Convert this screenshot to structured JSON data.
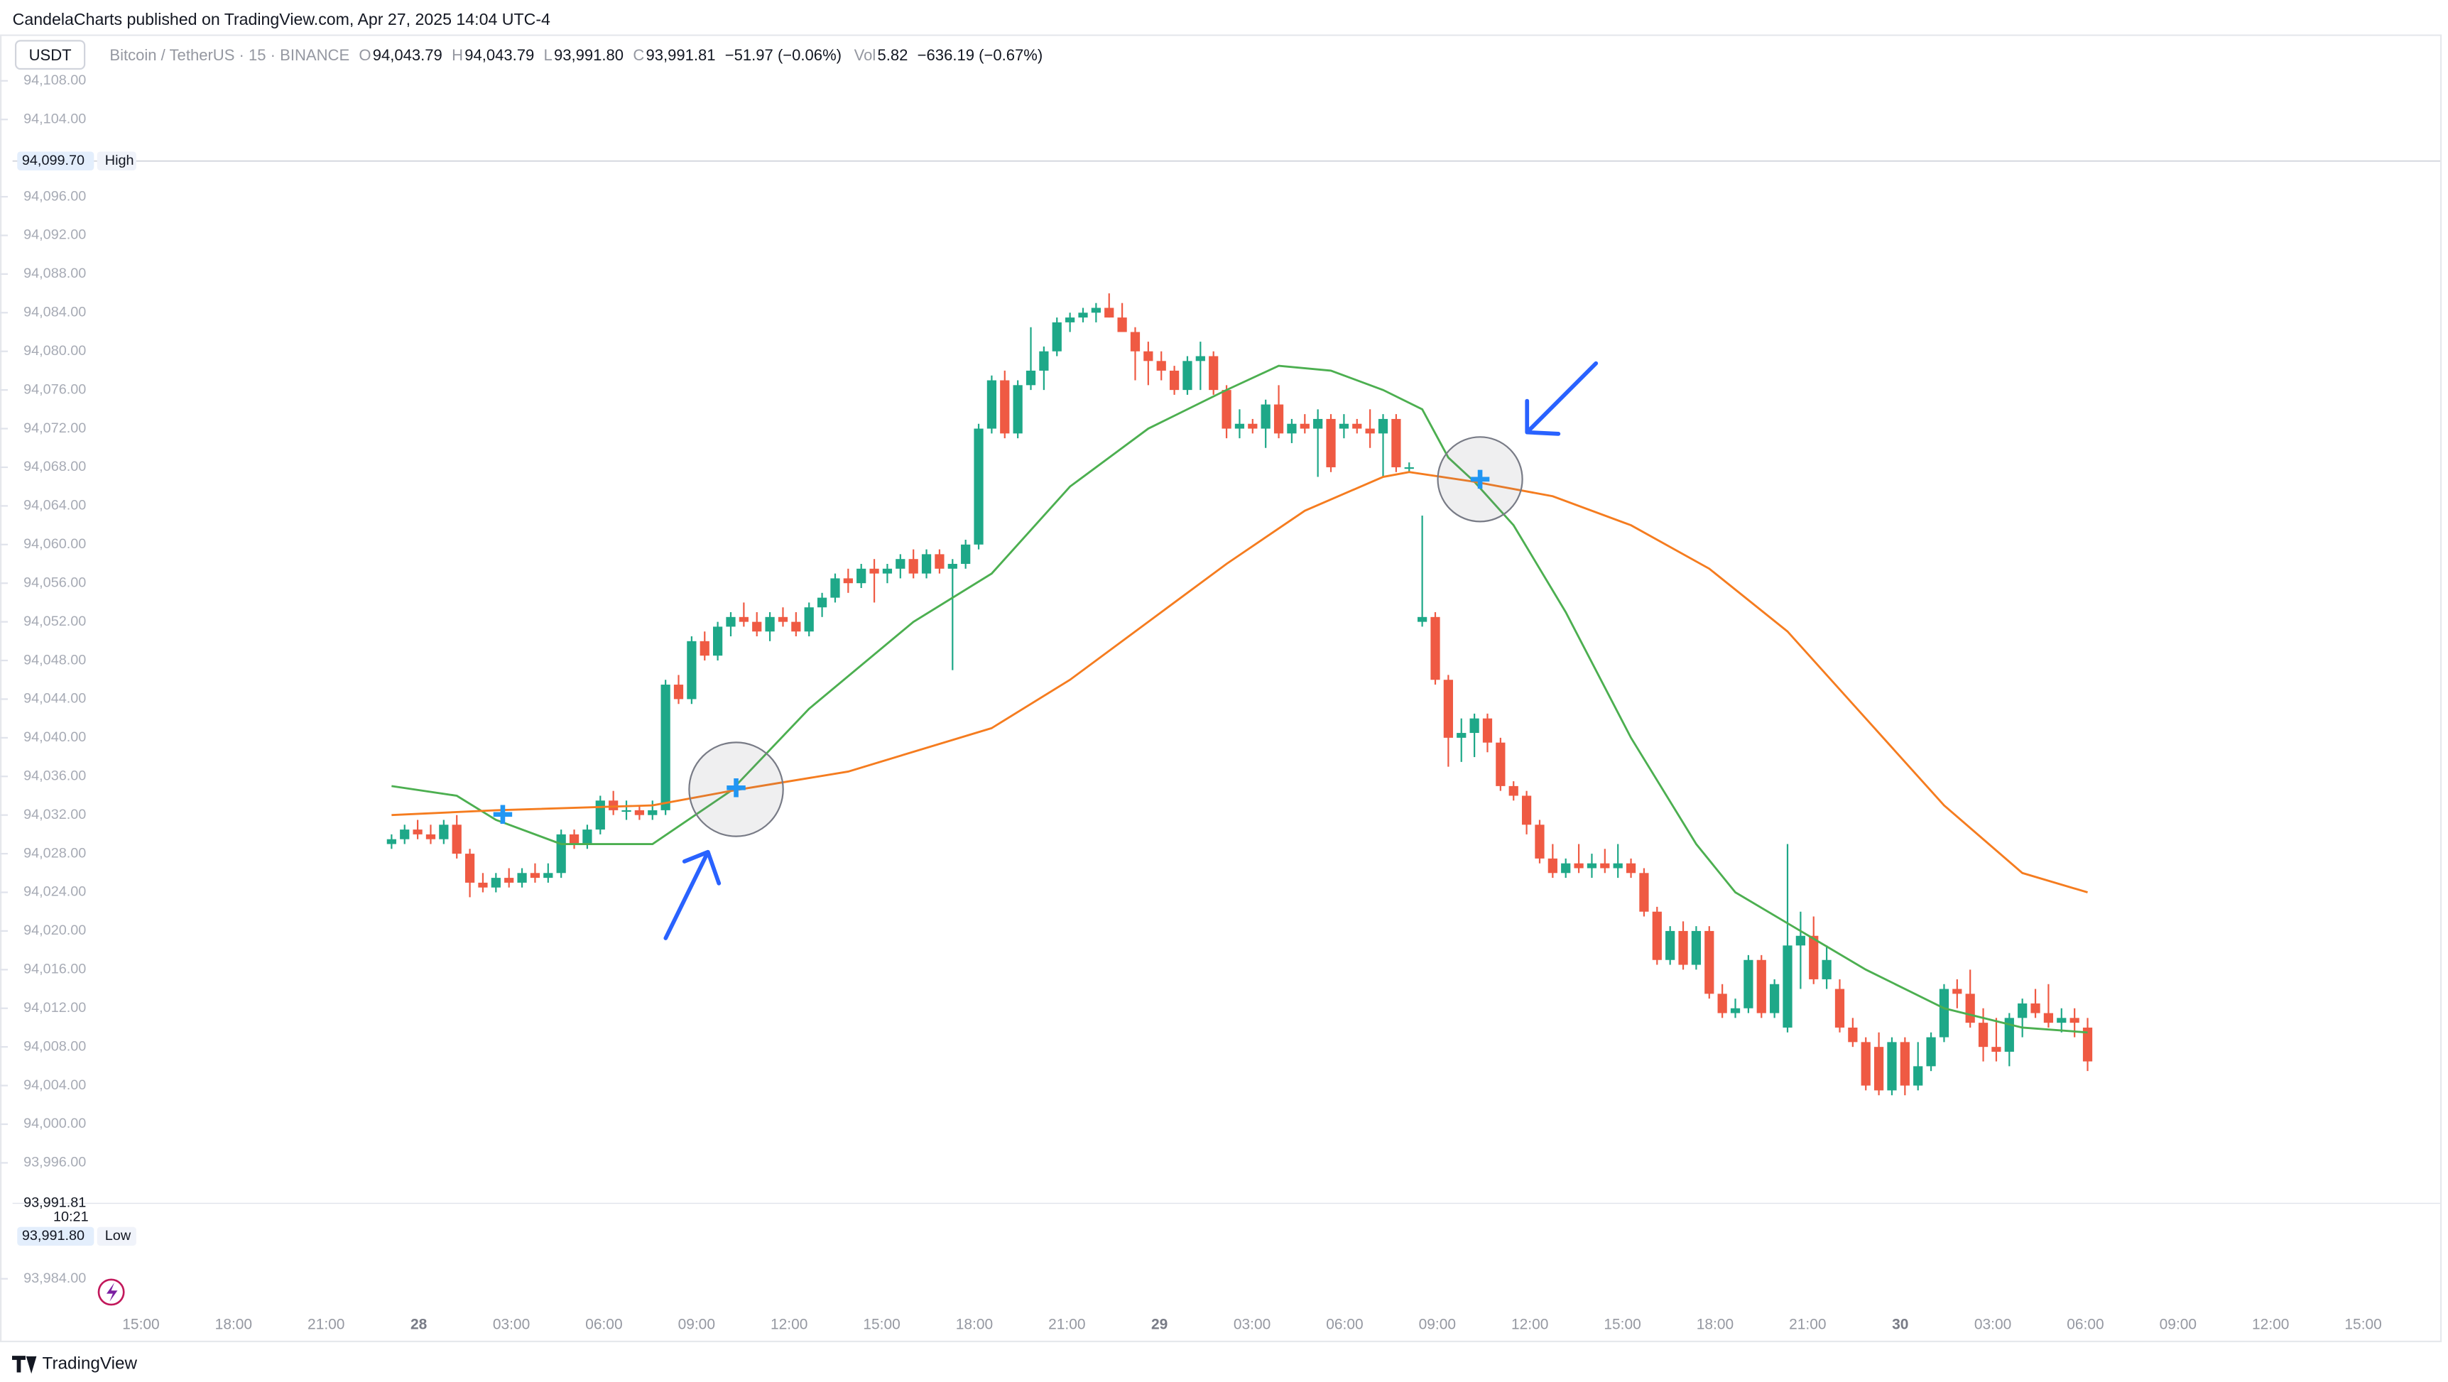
{
  "header": "CandelaCharts published on TradingView.com, Apr 27, 2025 14:04 UTC-4",
  "footer": "TradingView",
  "symbol_button": "USDT",
  "legend": {
    "symbol": "Bitcoin / TetherUS · 15 · BINANCE",
    "o_label": "O",
    "o": "94,043.79",
    "h_label": "H",
    "h": "94,043.79",
    "l_label": "L",
    "l": "93,991.80",
    "c_label": "C",
    "c": "93,991.81",
    "change": "−51.97 (−0.06%)",
    "vol_label": "Vol",
    "vol": "5.82",
    "vol_change": "−636.19 (−0.67%)"
  },
  "price_labels": {
    "high": {
      "value": 94099.7,
      "label": "94,099.70",
      "tag": "High"
    },
    "last": {
      "value": 93991.81,
      "label": "93,991.81",
      "tag": "10:21"
    },
    "low": {
      "value": 93991.8,
      "label": "93,991.80",
      "tag": "Low"
    }
  },
  "chart_data": {
    "type": "candlestick",
    "ylim": [
      93981,
      94112.8
    ],
    "yticks": [
      {
        "value": 94108,
        "label": "94,108.00"
      },
      {
        "value": 94104,
        "label": "94,104.00"
      },
      {
        "value": 94096,
        "label": "94,096.00"
      },
      {
        "value": 94092,
        "label": "94,092.00"
      },
      {
        "value": 94088,
        "label": "94,088.00"
      },
      {
        "value": 94084,
        "label": "94,084.00"
      },
      {
        "value": 94080,
        "label": "94,080.00"
      },
      {
        "value": 94076,
        "label": "94,076.00"
      },
      {
        "value": 94072,
        "label": "94,072.00"
      },
      {
        "value": 94068,
        "label": "94,068.00"
      },
      {
        "value": 94064,
        "label": "94,064.00"
      },
      {
        "value": 94060,
        "label": "94,060.00"
      },
      {
        "value": 94056,
        "label": "94,056.00"
      },
      {
        "value": 94052,
        "label": "94,052.00"
      },
      {
        "value": 94048,
        "label": "94,048.00"
      },
      {
        "value": 94044,
        "label": "94,044.00"
      },
      {
        "value": 94040,
        "label": "94,040.00"
      },
      {
        "value": 94036,
        "label": "94,036.00"
      },
      {
        "value": 94032,
        "label": "94,032.00"
      },
      {
        "value": 94028,
        "label": "94,028.00"
      },
      {
        "value": 94024,
        "label": "94,024.00"
      },
      {
        "value": 94020,
        "label": "94,020.00"
      },
      {
        "value": 94016,
        "label": "94,016.00"
      },
      {
        "value": 94012,
        "label": "94,012.00"
      },
      {
        "value": 94008,
        "label": "94,008.00"
      },
      {
        "value": 94004,
        "label": "94,004.00"
      },
      {
        "value": 94000,
        "label": "94,000.00"
      },
      {
        "value": 93996,
        "label": "93,996.00"
      },
      {
        "value": 93984,
        "label": "93,984.00"
      }
    ],
    "xtick_labels": [
      "15:00",
      "18:00",
      "21:00",
      "28",
      "03:00",
      "06:00",
      "09:00",
      "12:00",
      "15:00",
      "18:00",
      "21:00",
      "29",
      "03:00",
      "06:00",
      "09:00",
      "12:00",
      "15:00",
      "18:00",
      "21:00",
      "30",
      "03:00",
      "06:00",
      "09:00",
      "12:00",
      "15:00"
    ],
    "up_color": "#1ea888",
    "down_color": "#ef5a43",
    "candles": [
      [
        94029,
        94030,
        94028.5,
        94029.5
      ],
      [
        94029.5,
        94031,
        94029,
        94030.5
      ],
      [
        94030.5,
        94031.5,
        94029.5,
        94030
      ],
      [
        94030,
        94031,
        94029,
        94029.5
      ],
      [
        94029.5,
        94031.5,
        94029,
        94031
      ],
      [
        94031,
        94032,
        94027.5,
        94028
      ],
      [
        94028,
        94028.5,
        94023.5,
        94025
      ],
      [
        94025,
        94026,
        94024,
        94024.5
      ],
      [
        94024.5,
        94026,
        94024,
        94025.5
      ],
      [
        94025.5,
        94026.5,
        94024.5,
        94025
      ],
      [
        94025,
        94026.5,
        94024.5,
        94026
      ],
      [
        94026,
        94027,
        94025,
        94025.5
      ],
      [
        94025.5,
        94027,
        94025,
        94026
      ],
      [
        94026,
        94030.5,
        94025.5,
        94030
      ],
      [
        94030,
        94030.5,
        94028.5,
        94029
      ],
      [
        94029,
        94031,
        94028.5,
        94030.5
      ],
      [
        94030.5,
        94034,
        94030,
        94033.5
      ],
      [
        94033.5,
        94034.5,
        94032,
        94032.5
      ],
      [
        94032.5,
        94033.5,
        94031.5,
        94032.5
      ],
      [
        94032.5,
        94033,
        94031.5,
        94032
      ],
      [
        94032,
        94033.5,
        94031.5,
        94032.5
      ],
      [
        94032.5,
        94046,
        94032,
        94045.5
      ],
      [
        94045.5,
        94046.5,
        94043.5,
        94044
      ],
      [
        94044,
        94050.5,
        94043.5,
        94050
      ],
      [
        94050,
        94051,
        94048,
        94048.5
      ],
      [
        94048.5,
        94052,
        94048,
        94051.5
      ],
      [
        94051.5,
        94053,
        94050.5,
        94052.5
      ],
      [
        94052.5,
        94054,
        94051.5,
        94052
      ],
      [
        94052,
        94053,
        94050.5,
        94051
      ],
      [
        94051,
        94053,
        94050,
        94052.5
      ],
      [
        94052.5,
        94053.5,
        94051.5,
        94052
      ],
      [
        94052,
        94053,
        94050.5,
        94051
      ],
      [
        94051,
        94054,
        94050.5,
        94053.5
      ],
      [
        94053.5,
        94055,
        94052.5,
        94054.5
      ],
      [
        94054.5,
        94057,
        94054,
        94056.5
      ],
      [
        94056.5,
        94057.5,
        94055,
        94056
      ],
      [
        94056,
        94058,
        94055.5,
        94057.5
      ],
      [
        94057.5,
        94058.5,
        94054,
        94057
      ],
      [
        94057,
        94058,
        94056,
        94057.5
      ],
      [
        94057.5,
        94059,
        94056.5,
        94058.5
      ],
      [
        94058.5,
        94059.5,
        94056.5,
        94057
      ],
      [
        94057,
        94059.5,
        94056.5,
        94059
      ],
      [
        94059,
        94059.5,
        94057,
        94057.5
      ],
      [
        94057.5,
        94058.5,
        94047,
        94058
      ],
      [
        94058,
        94060.5,
        94057.5,
        94060
      ],
      [
        94060,
        94072.5,
        94059.5,
        94072
      ],
      [
        94072,
        94077.5,
        94071.5,
        94077
      ],
      [
        94077,
        94078,
        94071,
        94071.5
      ],
      [
        94071.5,
        94077,
        94071,
        94076.5
      ],
      [
        94076.5,
        94082.5,
        94076,
        94078
      ],
      [
        94078,
        94080.5,
        94076,
        94080
      ],
      [
        94080,
        94083.5,
        94079.5,
        94083
      ],
      [
        94083,
        94084,
        94082,
        94083.5
      ],
      [
        94083.5,
        94084.5,
        94083,
        94084
      ],
      [
        94084,
        94085,
        94083,
        94084.5
      ],
      [
        94084.5,
        94086,
        94083.5,
        94083.5
      ],
      [
        94083.5,
        94085,
        94082,
        94082
      ],
      [
        94082,
        94082.5,
        94077,
        94080
      ],
      [
        94080,
        94081,
        94076.5,
        94079
      ],
      [
        94079,
        94080,
        94077,
        94078
      ],
      [
        94078,
        94078.5,
        94075.5,
        94076
      ],
      [
        94076,
        94079.5,
        94075.5,
        94079
      ],
      [
        94079,
        94081,
        94076,
        94079.5
      ],
      [
        94079.5,
        94080,
        94075.5,
        94076
      ],
      [
        94076,
        94076.5,
        94071,
        94072
      ],
      [
        94072,
        94074,
        94071,
        94072.5
      ],
      [
        94072.5,
        94073,
        94071.5,
        94072
      ],
      [
        94072,
        94075,
        94070,
        94074.5
      ],
      [
        94074.5,
        94076.5,
        94071,
        94071.5
      ],
      [
        94071.5,
        94073,
        94070.5,
        94072.5
      ],
      [
        94072.5,
        94073.5,
        94071.5,
        94072
      ],
      [
        94072,
        94074,
        94067,
        94073
      ],
      [
        94073,
        94073.5,
        94067.5,
        94068
      ],
      [
        94072,
        94073.5,
        94071,
        94072.5
      ],
      [
        94072.5,
        94073,
        94071.5,
        94072
      ],
      [
        94072,
        94074,
        94070,
        94071.5
      ],
      [
        94071.5,
        94073.5,
        94067,
        94073
      ],
      [
        94073,
        94073.5,
        94067.5,
        94068
      ],
      [
        94068,
        94068.5,
        94067.5,
        94068
      ],
      [
        94052,
        94063,
        94051.5,
        94052.5
      ],
      [
        94052.5,
        94053,
        94045.5,
        94046
      ],
      [
        94046,
        94046.5,
        94037,
        94040
      ],
      [
        94040,
        94042,
        94037.5,
        94040.5
      ],
      [
        94040.5,
        94042.5,
        94038,
        94042
      ],
      [
        94042,
        94042.5,
        94038.5,
        94039.5
      ],
      [
        94039.5,
        94040,
        94034.5,
        94035
      ],
      [
        94035,
        94035.5,
        94033.5,
        94034
      ],
      [
        94034,
        94034.5,
        94030,
        94031
      ],
      [
        94031,
        94031.5,
        94027,
        94027.5
      ],
      [
        94027.5,
        94029,
        94025.5,
        94026
      ],
      [
        94026,
        94027.5,
        94025.5,
        94027
      ],
      [
        94027,
        94029,
        94026,
        94026.5
      ],
      [
        94026.5,
        94028,
        94025.5,
        94027
      ],
      [
        94027,
        94028.5,
        94026,
        94026.5
      ],
      [
        94026.5,
        94029,
        94025.5,
        94027
      ],
      [
        94027,
        94027.5,
        94025.5,
        94026
      ],
      [
        94026,
        94026.5,
        94021.5,
        94022
      ],
      [
        94022,
        94022.5,
        94016.5,
        94017
      ],
      [
        94017,
        94020.5,
        94016.5,
        94020
      ],
      [
        94020,
        94021,
        94016,
        94016.5
      ],
      [
        94016.5,
        94020.5,
        94016,
        94020
      ],
      [
        94020,
        94020.5,
        94013,
        94013.5
      ],
      [
        94013.5,
        94014.5,
        94011,
        94011.5
      ],
      [
        94011.5,
        94013,
        94011,
        94012
      ],
      [
        94012,
        94017.5,
        94011.5,
        94017
      ],
      [
        94017,
        94017.5,
        94011,
        94011.5
      ],
      [
        94011.5,
        94015,
        94011,
        94014.5
      ],
      [
        94010,
        94029,
        94009.5,
        94018.5
      ],
      [
        94018.5,
        94022,
        94014,
        94019.5
      ],
      [
        94019.5,
        94021.5,
        94014.5,
        94015
      ],
      [
        94015,
        94018.5,
        94014,
        94017
      ],
      [
        94014,
        94015,
        94009.5,
        94010
      ],
      [
        94010,
        94011,
        94008,
        94008.5
      ],
      [
        94008.5,
        94009,
        94003.5,
        94004
      ],
      [
        94008,
        94009.5,
        94003,
        94003.5
      ],
      [
        94003.5,
        94009,
        94003,
        94008.5
      ],
      [
        94008.5,
        94009,
        94003,
        94004
      ],
      [
        94004,
        94008.5,
        94003.5,
        94006
      ],
      [
        94006,
        94009.5,
        94005.5,
        94009
      ],
      [
        94009,
        94014.5,
        94008.5,
        94014
      ],
      [
        94014,
        94015,
        94012,
        94013.5
      ],
      [
        94013.5,
        94016,
        94010,
        94010.5
      ],
      [
        94010.5,
        94012,
        94006.5,
        94008
      ],
      [
        94008,
        94011,
        94006.5,
        94007.5
      ],
      [
        94007.5,
        94011.5,
        94006,
        94011
      ],
      [
        94011,
        94013,
        94009,
        94012.5
      ],
      [
        94012.5,
        94014,
        94011,
        94011.5
      ],
      [
        94011.5,
        94014.5,
        94010,
        94010.5
      ],
      [
        94010.5,
        94012,
        94009.5,
        94011
      ],
      [
        94011,
        94012,
        94009,
        94010.5
      ],
      [
        94010,
        94011,
        94005.5,
        94006.5
      ]
    ],
    "series": [
      {
        "color": "#4caf50",
        "x": [
          0,
          5,
          8,
          13,
          20,
          26,
          32,
          40,
          46,
          52,
          58,
          64,
          68,
          72,
          76,
          79,
          81,
          83,
          86,
          90,
          95,
          100,
          103,
          108,
          113,
          119,
          125,
          130
        ],
        "values": [
          94035,
          94034,
          94031.5,
          94029,
          94029,
          94034.5,
          94043,
          94052,
          94057,
          94066,
          94072,
          94076,
          94078.5,
          94078,
          94076,
          94074,
          94069,
          94066.5,
          94062,
          94053,
          94040,
          94029,
          94024,
          94020,
          94016,
          94012,
          94010,
          94009.5
        ]
      },
      {
        "color": "#f57c1f",
        "x": [
          0,
          8,
          20,
          26,
          35,
          46,
          52,
          58,
          64,
          70,
          76,
          78,
          83,
          89,
          95,
          101,
          107,
          113,
          119,
          125,
          130
        ],
        "values": [
          94032,
          94032.5,
          94033,
          94034.5,
          94036.5,
          94041,
          94046,
          94052,
          94058,
          94063.5,
          94067,
          94067.5,
          94066.5,
          94065,
          94062,
          94057.5,
          94051,
          94042,
          94033,
          94026,
          94024
        ]
      }
    ]
  }
}
